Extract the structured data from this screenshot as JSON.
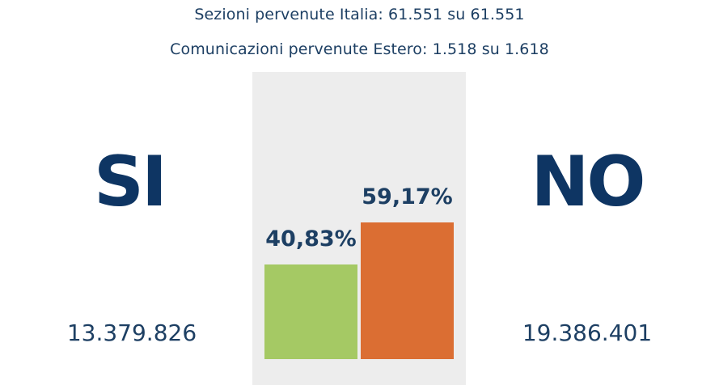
{
  "header": {
    "sezioni_text": "Sezioni pervenute Italia: 61.551 su 61.551",
    "comunicazioni_text": "Comunicazioni pervenute Estero: 1.518 su 1.618"
  },
  "options": {
    "si": {
      "label": "SI",
      "votes": "13.379.826"
    },
    "no": {
      "label": "NO",
      "votes": "19.386.401"
    }
  },
  "colors": {
    "si": "#a5c964",
    "no": "#db6e33",
    "text": "#0e3563",
    "panel": "#ededed"
  },
  "chart_data": {
    "type": "bar",
    "categories": [
      "SI",
      "NO"
    ],
    "values": [
      40.83,
      59.17
    ],
    "value_labels": [
      "40,83%",
      "59,17%"
    ],
    "ylim": [
      0,
      100
    ]
  }
}
